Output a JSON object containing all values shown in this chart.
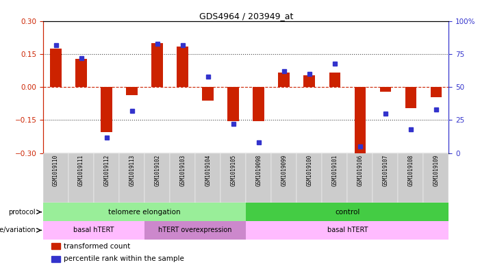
{
  "title": "GDS4964 / 203949_at",
  "samples": [
    "GSM1019110",
    "GSM1019111",
    "GSM1019112",
    "GSM1019113",
    "GSM1019102",
    "GSM1019103",
    "GSM1019104",
    "GSM1019105",
    "GSM1019098",
    "GSM1019099",
    "GSM1019100",
    "GSM1019101",
    "GSM1019106",
    "GSM1019107",
    "GSM1019108",
    "GSM1019109"
  ],
  "bar_values": [
    0.175,
    0.13,
    -0.205,
    -0.035,
    0.2,
    0.185,
    -0.06,
    -0.155,
    -0.155,
    0.065,
    0.055,
    0.065,
    -0.3,
    -0.02,
    -0.095,
    -0.045
  ],
  "blue_values": [
    82,
    72,
    12,
    32,
    83,
    82,
    58,
    22,
    8,
    62,
    60,
    68,
    5,
    30,
    18,
    33
  ],
  "ylim_left": [
    -0.3,
    0.3
  ],
  "ylim_right": [
    0,
    100
  ],
  "yticks_left": [
    -0.3,
    -0.15,
    0,
    0.15,
    0.3
  ],
  "yticks_right": [
    0,
    25,
    50,
    75,
    100
  ],
  "ytick_labels_right": [
    "0",
    "25",
    "50",
    "75",
    "100%"
  ],
  "hline_dotted": [
    -0.15,
    0.15
  ],
  "hline_dashed": [
    0
  ],
  "bar_color": "#cc2200",
  "blue_color": "#3333cc",
  "protocol_groups": [
    {
      "label": "telomere elongation",
      "start": 0,
      "end": 8,
      "color": "#99ee99"
    },
    {
      "label": "control",
      "start": 8,
      "end": 16,
      "color": "#44cc44"
    }
  ],
  "genotype_groups": [
    {
      "label": "basal hTERT",
      "start": 0,
      "end": 4,
      "color": "#ffbbff"
    },
    {
      "label": "hTERT overexpression",
      "start": 4,
      "end": 8,
      "color": "#cc88cc"
    },
    {
      "label": "basal hTERT",
      "start": 8,
      "end": 16,
      "color": "#ffbbff"
    }
  ],
  "legend_items": [
    {
      "label": "transformed count",
      "color": "#cc2200"
    },
    {
      "label": "percentile rank within the sample",
      "color": "#3333cc"
    }
  ],
  "left_axis_color": "#cc2200",
  "right_axis_color": "#3333cc",
  "xtick_bg": "#cccccc",
  "background_color": "#ffffff"
}
